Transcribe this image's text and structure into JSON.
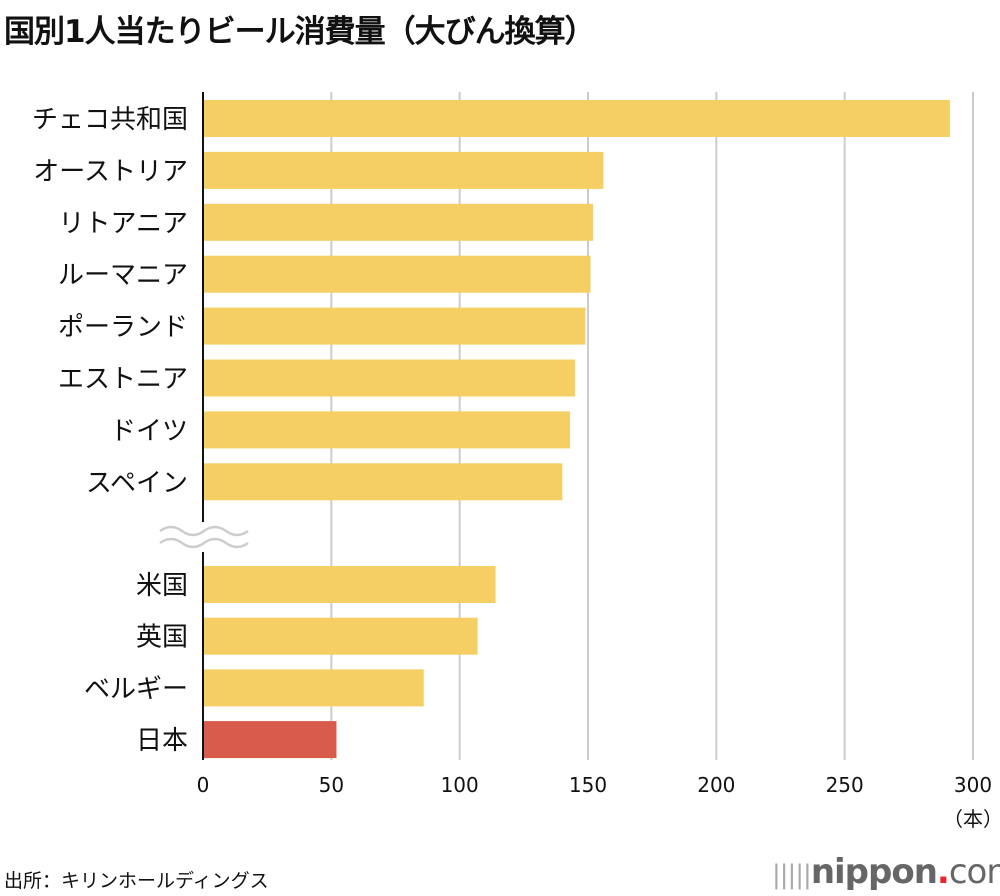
{
  "chart_data": {
    "type": "bar",
    "orientation": "horizontal",
    "title": "国別1人当たりビール消費量（大びん換算）",
    "unit_label": "（本）",
    "categories": [
      "チェコ共和国",
      "オーストリア",
      "リトアニア",
      "ルーマニア",
      "ポーランド",
      "エストニア",
      "ドイツ",
      "スペイン",
      "米国",
      "英国",
      "ベルギー",
      "日本"
    ],
    "values": [
      291,
      156,
      152,
      151,
      149,
      145,
      143,
      140,
      114,
      107,
      86,
      52
    ],
    "axis_break_after": "スペイン",
    "xlim": [
      0,
      300
    ],
    "xticks": [
      0,
      50,
      100,
      150,
      200,
      250,
      300
    ],
    "grid": true,
    "colors": {
      "default": "#f5cf63",
      "highlight": "#d95b4c",
      "highlight_category": "日本",
      "grid": "#cccccc",
      "axis": "#111111"
    }
  },
  "source": "出所：キリンホールディングス",
  "logo": {
    "name": "nippon",
    "dot": ".",
    "com": "com"
  }
}
